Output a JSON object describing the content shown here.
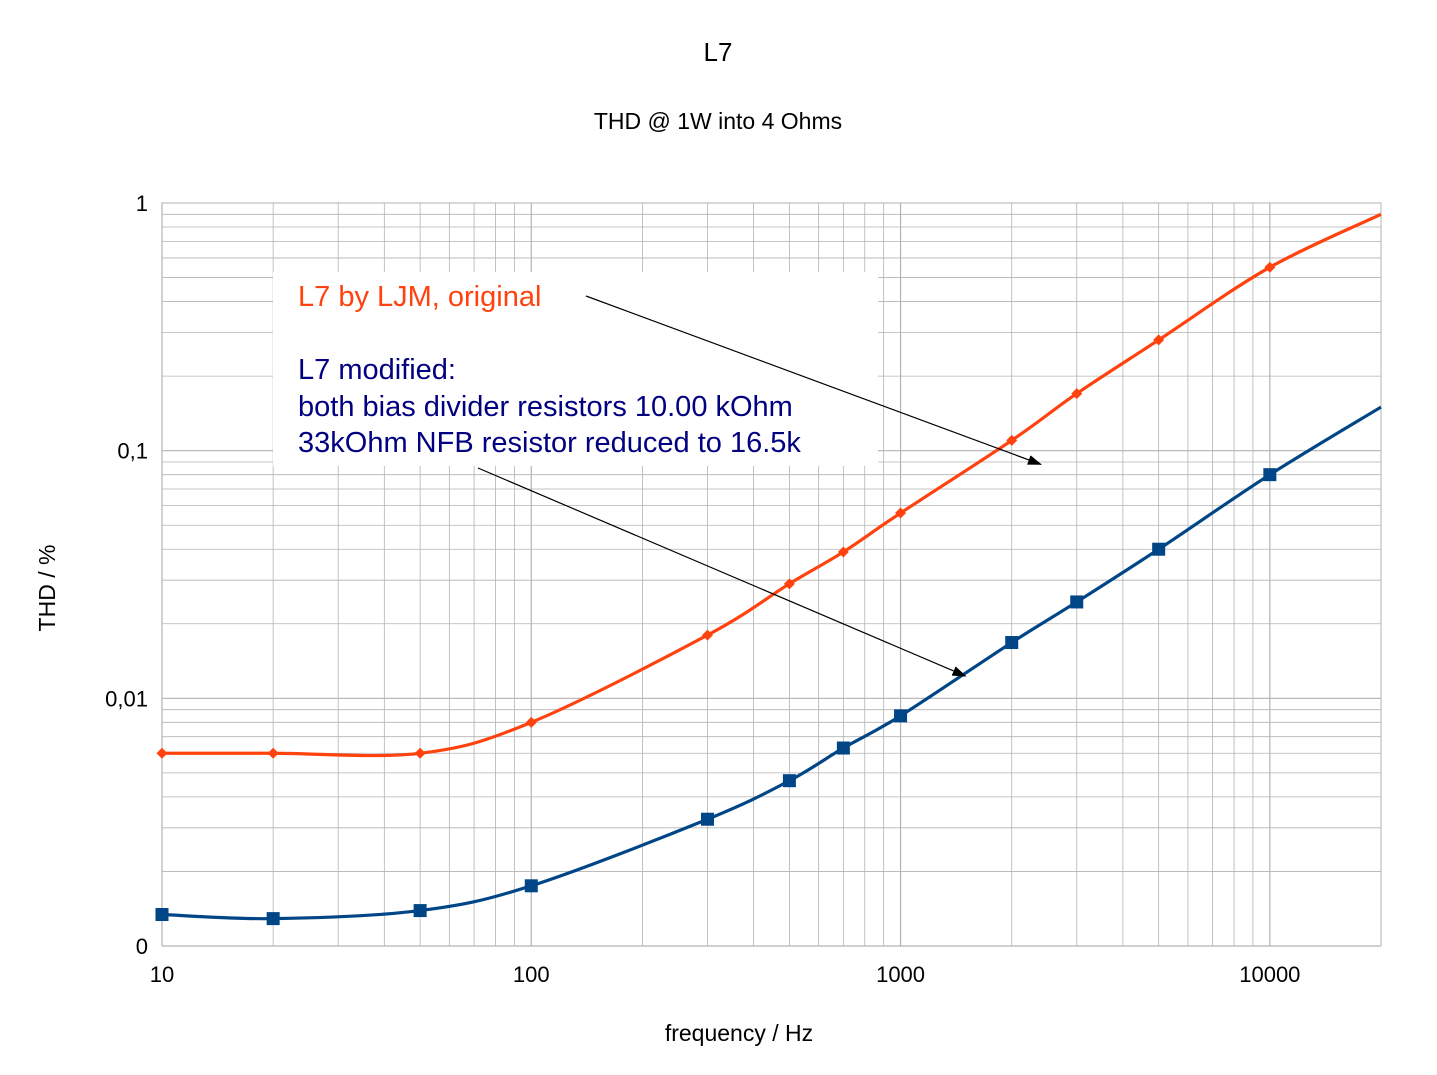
{
  "chart_data": {
    "type": "line",
    "title": "L7",
    "subtitle": "THD @ 1W into 4 Ohms",
    "xlabel": "frequency / Hz",
    "ylabel": "THD / %",
    "x_scale": "log",
    "y_scale": "log",
    "xlim": [
      10,
      20000
    ],
    "ylim": [
      0.001,
      1
    ],
    "x_ticks": [
      {
        "value": 10,
        "label": "10"
      },
      {
        "value": 100,
        "label": "100"
      },
      {
        "value": 1000,
        "label": "1000"
      },
      {
        "value": 10000,
        "label": "10000"
      }
    ],
    "y_ticks": [
      {
        "value": 1,
        "label": "1"
      },
      {
        "value": 0.1,
        "label": "0,1"
      },
      {
        "value": 0.01,
        "label": "0,01"
      },
      {
        "value": 0.001,
        "label": "0"
      }
    ],
    "grid": true,
    "series": [
      {
        "name": "L7 by LJM, original",
        "color": "#ff420e",
        "marker": "diamond",
        "x": [
          10,
          20,
          50,
          100,
          300,
          500,
          700,
          1000,
          2000,
          3000,
          5000,
          10000,
          20000
        ],
        "y": [
          0.006,
          0.006,
          0.006,
          0.008,
          0.018,
          0.029,
          0.039,
          0.056,
          0.11,
          0.17,
          0.28,
          0.55,
          0.9
        ],
        "marker_mask": [
          true,
          true,
          true,
          true,
          true,
          true,
          true,
          true,
          true,
          true,
          true,
          true,
          false
        ]
      },
      {
        "name": "L7 modified",
        "color": "#004586",
        "marker": "square",
        "x": [
          10,
          20,
          50,
          100,
          300,
          500,
          700,
          1000,
          2000,
          3000,
          5000,
          10000,
          20000
        ],
        "y": [
          0.00134,
          0.00129,
          0.00139,
          0.00175,
          0.00325,
          0.00465,
          0.0063,
          0.0085,
          0.0168,
          0.0245,
          0.04,
          0.08,
          0.15
        ],
        "marker_mask": [
          true,
          true,
          true,
          true,
          true,
          true,
          true,
          true,
          true,
          true,
          true,
          true,
          false
        ]
      }
    ],
    "annotations": {
      "original": "L7 by LJM, original",
      "modified_lines": [
        "L7 modified:",
        "both bias divider resistors 10.00 kOhm",
        "33kOhm NFB resistor reduced to 16.5k"
      ],
      "original_arrow_target": {
        "x": 2400,
        "y": 0.088
      },
      "modified_arrow_target": {
        "x": 1500,
        "y": 0.0123
      }
    }
  }
}
